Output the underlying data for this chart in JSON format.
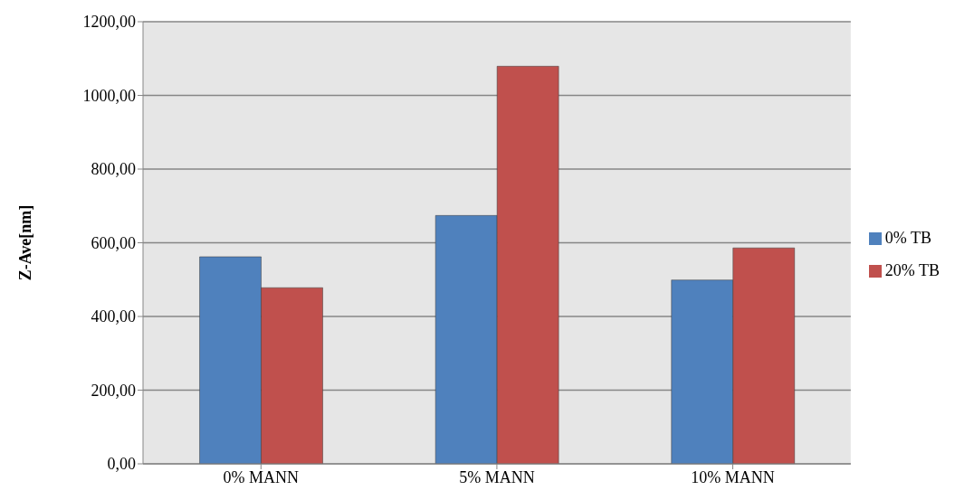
{
  "chart_data": {
    "type": "bar",
    "ylabel": "Z-Ave[nm]",
    "categories": [
      "0% MANN",
      "5% MANN",
      "10% MANN"
    ],
    "series": [
      {
        "name": "0% TB",
        "color": "#4f81bd",
        "values": [
          562,
          674,
          499
        ]
      },
      {
        "name": "20% TB",
        "color": "#c0504d",
        "values": [
          478,
          1079,
          586
        ]
      }
    ],
    "ylim": [
      0,
      1200
    ],
    "yticks": [
      {
        "value": 0,
        "label": "0,00"
      },
      {
        "value": 200,
        "label": "200,00"
      },
      {
        "value": 400,
        "label": "400,00"
      },
      {
        "value": 600,
        "label": "600,00"
      },
      {
        "value": 800,
        "label": "800,00"
      },
      {
        "value": 1000,
        "label": "1000,00"
      },
      {
        "value": 1200,
        "label": "1200,00"
      }
    ],
    "grid": "y",
    "legend": "right"
  }
}
